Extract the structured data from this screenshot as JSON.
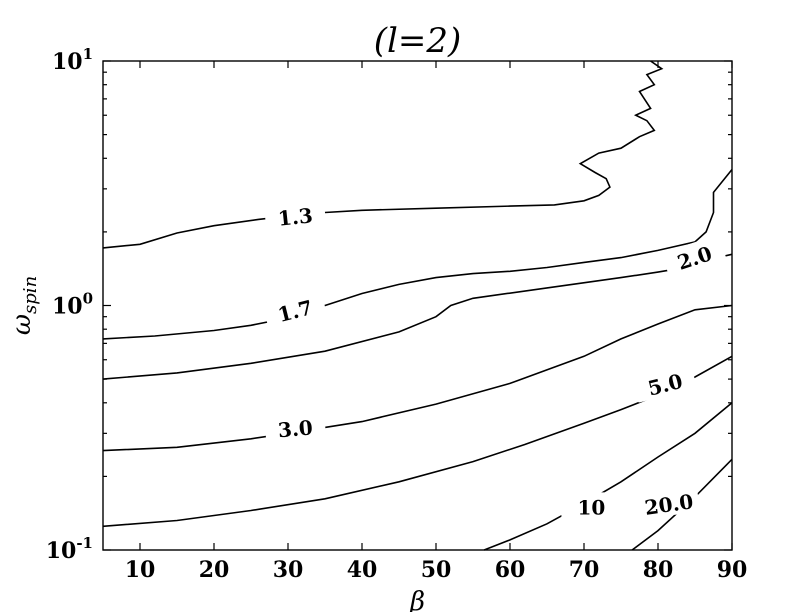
{
  "chart_data": {
    "type": "contour",
    "title": "(l=2)",
    "xlabel": "β",
    "ylabel": "ω_spin",
    "xlim": [
      5,
      90
    ],
    "ylim": [
      0.1,
      10
    ],
    "yscale": "log",
    "x_ticks": [
      10,
      20,
      30,
      40,
      50,
      60,
      70,
      80,
      90
    ],
    "y_ticks": [
      {
        "value": 0.1,
        "base": "10",
        "exp": "-1"
      },
      {
        "value": 1,
        "base": "10",
        "exp": "0"
      },
      {
        "value": 10,
        "base": "10",
        "exp": "1"
      }
    ],
    "contours": [
      {
        "level": "1.3",
        "points": [
          [
            5,
            1.72
          ],
          [
            10,
            1.78
          ],
          [
            15,
            1.98
          ],
          [
            20,
            2.12
          ],
          [
            26,
            2.25
          ],
          [
            30,
            2.32
          ],
          [
            35,
            2.4
          ],
          [
            40,
            2.45
          ],
          [
            50,
            2.5
          ],
          [
            60,
            2.55
          ],
          [
            66,
            2.58
          ],
          [
            70,
            2.68
          ],
          [
            72,
            2.82
          ],
          [
            73.5,
            3.05
          ],
          [
            73,
            3.3
          ],
          [
            71.5,
            3.5
          ],
          [
            69.5,
            3.8
          ],
          [
            72,
            4.2
          ],
          [
            75,
            4.4
          ],
          [
            77.5,
            4.9
          ],
          [
            79.5,
            5.2
          ],
          [
            78.5,
            5.7
          ],
          [
            77,
            6.0
          ],
          [
            79,
            6.4
          ],
          [
            77.5,
            7.5
          ],
          [
            79.5,
            8.0
          ],
          [
            78.5,
            8.8
          ],
          [
            80.5,
            9.3
          ],
          [
            79,
            10
          ]
        ],
        "label_at": [
          31,
          2.28
        ],
        "label_rot": -6
      },
      {
        "level": "1.7",
        "points": [
          [
            5,
            0.73
          ],
          [
            12,
            0.75
          ],
          [
            20,
            0.79
          ],
          [
            25,
            0.83
          ],
          [
            30,
            0.89
          ],
          [
            35,
            1.0
          ],
          [
            40,
            1.12
          ],
          [
            45,
            1.22
          ],
          [
            50,
            1.3
          ],
          [
            55,
            1.35
          ],
          [
            60,
            1.38
          ],
          [
            65,
            1.43
          ],
          [
            70,
            1.5
          ],
          [
            75,
            1.57
          ],
          [
            80,
            1.68
          ],
          [
            85,
            1.82
          ],
          [
            86.5,
            2.0
          ],
          [
            87.5,
            2.4
          ],
          [
            87.5,
            2.9
          ],
          [
            90,
            3.6
          ]
        ],
        "label_at": [
          31,
          0.94
        ],
        "label_rot": -14
      },
      {
        "level": "2.0",
        "points": [
          [
            5,
            0.5
          ],
          [
            15,
            0.53
          ],
          [
            25,
            0.58
          ],
          [
            35,
            0.65
          ],
          [
            45,
            0.78
          ],
          [
            50,
            0.9
          ],
          [
            52,
            1.0
          ],
          [
            55,
            1.07
          ],
          [
            65,
            1.18
          ],
          [
            75,
            1.3
          ],
          [
            80,
            1.37
          ],
          [
            83,
            1.42
          ],
          [
            86,
            1.52
          ],
          [
            90,
            1.62
          ]
        ],
        "label_at": [
          85,
          1.55
        ],
        "label_rot": -18
      },
      {
        "level": "3.0",
        "points": [
          [
            5,
            0.255
          ],
          [
            15,
            0.263
          ],
          [
            25,
            0.285
          ],
          [
            30,
            0.3
          ],
          [
            40,
            0.335
          ],
          [
            50,
            0.395
          ],
          [
            60,
            0.48
          ],
          [
            70,
            0.62
          ],
          [
            75,
            0.73
          ],
          [
            80,
            0.84
          ],
          [
            85,
            0.96
          ],
          [
            90,
            1.0
          ]
        ],
        "label_at": [
          31,
          0.31
        ],
        "label_rot": -5
      },
      {
        "level": "5.0",
        "points": [
          [
            5,
            0.125
          ],
          [
            15,
            0.132
          ],
          [
            25,
            0.145
          ],
          [
            35,
            0.162
          ],
          [
            45,
            0.19
          ],
          [
            55,
            0.23
          ],
          [
            62,
            0.27
          ],
          [
            70,
            0.33
          ],
          [
            75,
            0.375
          ],
          [
            80,
            0.43
          ],
          [
            85,
            0.51
          ],
          [
            90,
            0.62
          ]
        ],
        "label_at": [
          81,
          0.47
        ],
        "label_rot": -14
      },
      {
        "level": "10",
        "points": [
          [
            56.5,
            0.1
          ],
          [
            60,
            0.11
          ],
          [
            65,
            0.128
          ],
          [
            70,
            0.155
          ],
          [
            75,
            0.19
          ],
          [
            80,
            0.24
          ],
          [
            85,
            0.3
          ],
          [
            90,
            0.4
          ]
        ],
        "label_at": [
          71,
          0.148
        ],
        "label_rot": 0
      },
      {
        "level": "20.0",
        "points": [
          [
            76.5,
            0.1
          ],
          [
            80,
            0.12
          ],
          [
            85,
            0.165
          ],
          [
            90,
            0.235
          ]
        ],
        "label_at": [
          81.5,
          0.152
        ],
        "label_rot": -8
      }
    ]
  }
}
